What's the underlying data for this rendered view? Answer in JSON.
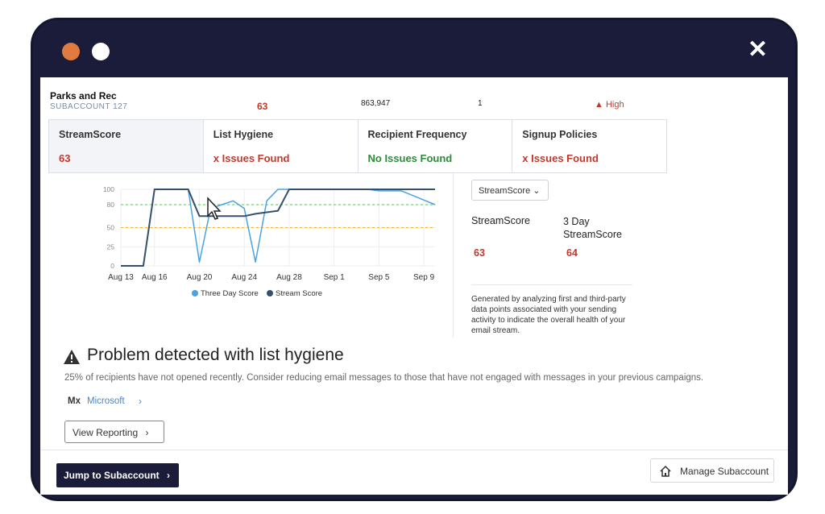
{
  "account": {
    "name": "Parks and Rec",
    "subaccount": "SUBACCOUNT 127",
    "score": "63",
    "count": "863,947",
    "one": "1",
    "risk": "High"
  },
  "tabs": [
    {
      "title": "StreamScore",
      "value": "63"
    },
    {
      "title": "List Hygiene",
      "value": "x  Issues Found"
    },
    {
      "title": "Recipient Frequency",
      "value": "No Issues Found"
    },
    {
      "title": "Signup Policies",
      "value": "x  Issues Found"
    }
  ],
  "side": {
    "dropdown": "StreamScore",
    "streamscore_label": "StreamScore",
    "three_day_label": "3 Day StreamScore",
    "streamscore_value": "63",
    "three_day_value": "64",
    "description": "Generated by analyzing first and third-party data points associated with your sending activity to indicate the overall health of your email stream."
  },
  "problem": {
    "title": "Problem detected with list hygiene",
    "description": "25% of recipients have not opened recently. Consider reducing email messages to those that have not engaged with messages in your previous campaigns.",
    "mx_label": "Mx",
    "mx_link": "Microsoft",
    "view_button": "View Reporting"
  },
  "footer": {
    "jump_button": "Jump to Subaccount",
    "manage_button": "Manage Subaccount"
  },
  "colors": {
    "navy": "#1a1c3a",
    "red": "#c0392b",
    "green": "#2e8b3a",
    "three_day": "#4aa3df",
    "stream": "#34506e",
    "line_80": "#5cc35c",
    "line_50": "#f0b53a"
  },
  "icons": [
    "warning-icon",
    "cursor-icon",
    "home-icon",
    "chevron-right-icon",
    "chevron-down-icon",
    "close-icon"
  ],
  "chart_data": {
    "type": "line",
    "x": [
      "Aug 13",
      "Aug 14",
      "Aug 15",
      "Aug 16",
      "Aug 17",
      "Aug 18",
      "Aug 19",
      "Aug 20",
      "Aug 21",
      "Aug 22",
      "Aug 23",
      "Aug 24",
      "Aug 25",
      "Aug 26",
      "Aug 27",
      "Aug 28",
      "Aug 29",
      "Aug 30",
      "Aug 31",
      "Sep 1",
      "Sep 2",
      "Sep 3",
      "Sep 4",
      "Sep 5",
      "Sep 6",
      "Sep 7",
      "Sep 8",
      "Sep 9",
      "Sep 10"
    ],
    "xticks": [
      "Aug 13",
      "Aug 16",
      "Aug 20",
      "Aug 24",
      "Aug 28",
      "Sep 1",
      "Sep 5",
      "Sep 9"
    ],
    "yticks": [
      0,
      25,
      50,
      80,
      100
    ],
    "ylim": [
      0,
      100
    ],
    "reference_lines": [
      80,
      50
    ],
    "legend": "bottom",
    "series": [
      {
        "name": "Three Day Score",
        "values": [
          0,
          0,
          0,
          100,
          100,
          100,
          100,
          5,
          75,
          80,
          85,
          75,
          5,
          85,
          100,
          100,
          100,
          100,
          100,
          100,
          100,
          100,
          100,
          98,
          98,
          98,
          92,
          86,
          80
        ]
      },
      {
        "name": "Stream Score",
        "values": [
          0,
          0,
          0,
          100,
          100,
          100,
          100,
          65,
          65,
          65,
          65,
          65,
          68,
          70,
          72,
          100,
          100,
          100,
          100,
          100,
          100,
          100,
          100,
          100,
          100,
          100,
          100,
          100,
          100
        ]
      }
    ]
  }
}
